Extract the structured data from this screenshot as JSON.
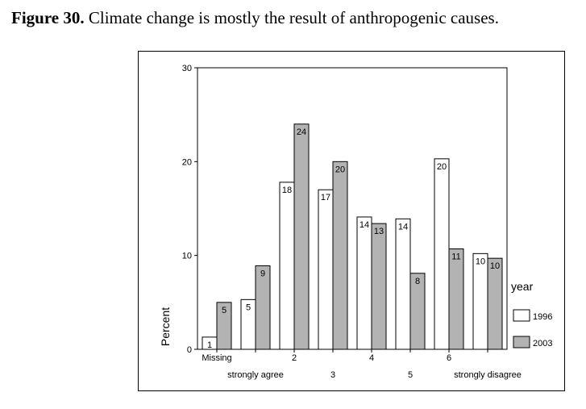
{
  "caption": {
    "label": "Figure 30.",
    "text": " Climate change is mostly the result of anthropogenic causes."
  },
  "chart_data": {
    "type": "bar",
    "categories": [
      "Missing",
      "strongly agree",
      "2",
      "3",
      "4",
      "5",
      "6",
      "strongly disagree"
    ],
    "series": [
      {
        "name": "1996",
        "values": [
          1.3,
          5.3,
          17.8,
          17.0,
          14.1,
          13.9,
          20.3,
          10.2
        ],
        "labels": [
          "1",
          "5",
          "18",
          "17",
          "14",
          "14",
          "20",
          "10"
        ],
        "color": "#ffffff"
      },
      {
        "name": "2003",
        "values": [
          5.0,
          8.9,
          24.0,
          20.0,
          13.4,
          8.1,
          10.7,
          9.7
        ],
        "labels": [
          "5",
          "9",
          "24",
          "20",
          "13",
          "8",
          "11",
          "10"
        ],
        "color": "#b3b3b3"
      }
    ],
    "ylabel": "Percent",
    "ylim": [
      0,
      30
    ],
    "yticks": [
      0,
      10,
      20,
      30
    ],
    "legend": {
      "title": "year",
      "position": "right"
    },
    "grid": false
  }
}
